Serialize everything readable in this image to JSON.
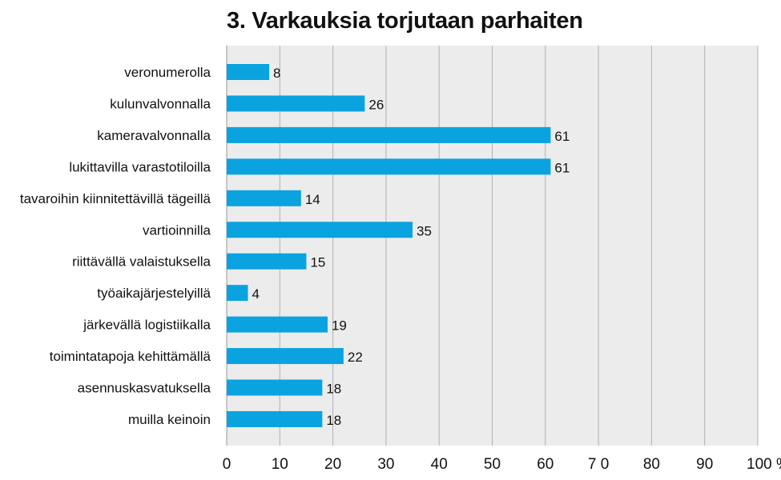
{
  "chart_data": {
    "type": "bar",
    "orientation": "horizontal",
    "title": "3. Varkauksia torjutaan parhaiten",
    "categories": [
      "veronumerolla",
      "kulunvalvonnalla",
      "kameravalvonnalla",
      "lukittavilla varastotiloilla",
      "tavaroihin kiinnitettävillä tägeillä",
      "vartioinnilla",
      "riittävällä valaistuksella",
      "työaikajärjestelyillä",
      "järkevällä logistiikalla",
      "toimintatapoja kehittämällä",
      "asennuskasvatuksella",
      "muilla keinoin"
    ],
    "values": [
      8,
      26,
      61,
      61,
      14,
      35,
      15,
      4,
      19,
      22,
      18,
      18
    ],
    "value_labels": [
      "8",
      "26",
      "61",
      "61",
      "14",
      "35",
      "15",
      "4",
      "19",
      "22",
      "18",
      "18"
    ],
    "xlim": [
      0,
      100
    ],
    "xticks": [
      0,
      10,
      20,
      30,
      40,
      50,
      60,
      70,
      80,
      90,
      100
    ],
    "xtick_labels": [
      "0",
      "10",
      "20",
      "30",
      "40",
      "50",
      "60",
      "7 0",
      "80",
      "90",
      "100 %"
    ],
    "xlabel": "",
    "ylabel": "",
    "grid": true,
    "legend": "none",
    "colors": {
      "bar": "#0aa3e0",
      "plot_background": "#ececec",
      "grid": "#b0b0b0",
      "text": "#111111"
    }
  }
}
